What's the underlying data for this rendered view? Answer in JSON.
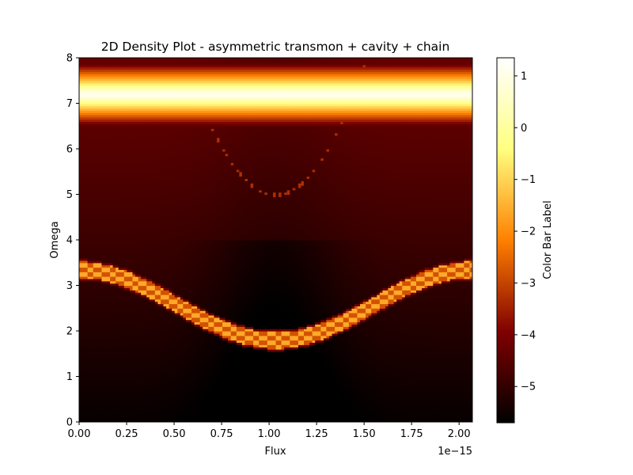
{
  "chart_data": {
    "type": "heatmap",
    "title": "2D Density Plot - asymmetric transmon + cavity + chain",
    "xlabel": "Flux",
    "ylabel": "Omega",
    "x_offset_text": "1e−15",
    "colorbar_label": "Color Bar Label",
    "colormap": "afmhot",
    "xlim": [
      0.0,
      2.07
    ],
    "ylim": [
      0,
      8
    ],
    "clim": [
      -5.7,
      1.35
    ],
    "x_ticks": [
      0.0,
      0.25,
      0.5,
      0.75,
      1.0,
      1.25,
      1.5,
      1.75,
      2.0
    ],
    "x_tick_labels": [
      "0.00",
      "0.25",
      "0.50",
      "0.75",
      "1.00",
      "1.25",
      "1.50",
      "1.75",
      "2.00"
    ],
    "y_ticks": [
      0,
      1,
      2,
      3,
      4,
      5,
      6,
      7,
      8
    ],
    "y_tick_labels": [
      "0",
      "1",
      "2",
      "3",
      "4",
      "5",
      "6",
      "7",
      "8"
    ],
    "colorbar_ticks": [
      1,
      0,
      -1,
      -2,
      -3,
      -4,
      -5
    ],
    "colorbar_tick_labels": [
      "1",
      "0",
      "−1",
      "−2",
      "−3",
      "−4",
      "−5"
    ],
    "features": {
      "cavity_line": {
        "omega": 7.2,
        "value": 1.3,
        "glow_width": 0.55
      },
      "transmon_band": {
        "omega_at_edges": 3.35,
        "omega_at_center": 1.8,
        "center_flux": 1.035,
        "band_half_width": 0.18,
        "value": -2.2
      },
      "chain_arc": {
        "omega_min": 5.0,
        "omega_max": 8.0,
        "center_flux": 1.035,
        "value": -3.3
      },
      "background": {
        "value_low_omega": -5.6,
        "value_high_omega": -4.3
      }
    },
    "grid": false,
    "colorbar_position": "right"
  }
}
